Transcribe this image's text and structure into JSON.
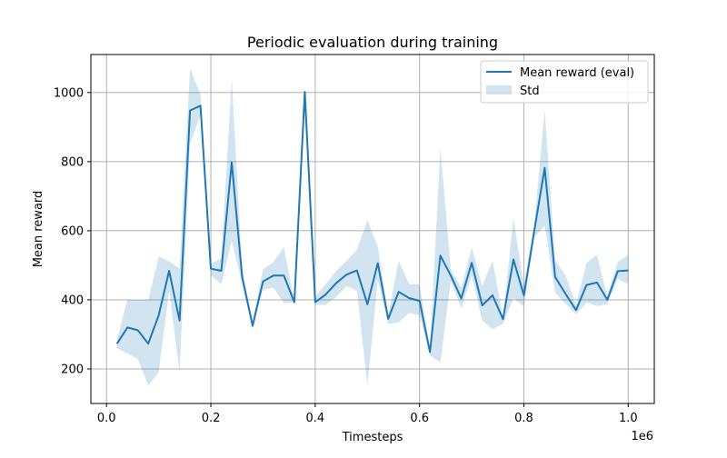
{
  "chart_data": {
    "type": "line",
    "title": "Periodic evaluation during training",
    "xlabel": "Timesteps",
    "ylabel": "Mean reward",
    "x_offset_label": "1e6",
    "xlim": [
      -0.03,
      1.05
    ],
    "ylim": [
      100,
      1110
    ],
    "xticks": [
      0.0,
      0.2,
      0.4,
      0.6,
      0.8,
      1.0
    ],
    "xtick_labels": [
      "0.0",
      "0.2",
      "0.4",
      "0.6",
      "0.8",
      "1.0"
    ],
    "yticks": [
      200,
      400,
      600,
      800,
      1000
    ],
    "ytick_labels": [
      "200",
      "400",
      "600",
      "800",
      "1000"
    ],
    "grid": true,
    "legend_position": "top-right",
    "colors": {
      "line": "#1f77b4",
      "band": "#1f77b4",
      "grid": "#b0b0b0",
      "frame": "#000000"
    },
    "x": [
      0.02,
      0.04,
      0.06,
      0.08,
      0.1,
      0.12,
      0.14,
      0.16,
      0.18,
      0.2,
      0.22,
      0.24,
      0.26,
      0.28,
      0.3,
      0.32,
      0.34,
      0.36,
      0.38,
      0.4,
      0.42,
      0.44,
      0.46,
      0.48,
      0.5,
      0.52,
      0.54,
      0.56,
      0.58,
      0.6,
      0.62,
      0.64,
      0.66,
      0.68,
      0.7,
      0.72,
      0.74,
      0.76,
      0.78,
      0.8,
      0.82,
      0.84,
      0.86,
      0.88,
      0.9,
      0.92,
      0.94,
      0.96,
      0.98,
      1.0
    ],
    "series": [
      {
        "name": "Mean reward (eval)",
        "values": [
          273,
          320,
          312,
          273,
          355,
          484,
          340,
          948,
          962,
          490,
          484,
          798,
          465,
          325,
          453,
          470,
          470,
          393,
          1002,
          393,
          415,
          448,
          473,
          485,
          387,
          506,
          345,
          423,
          405,
          397,
          249,
          528,
          470,
          404,
          507,
          384,
          413,
          344,
          517,
          413,
          601,
          782,
          466,
          417,
          370,
          443,
          450,
          400,
          483,
          485
        ]
      }
    ],
    "band": {
      "name": "Std",
      "lower": [
        260,
        245,
        228,
        152,
        190,
        425,
        190,
        850,
        935,
        470,
        445,
        570,
        445,
        318,
        430,
        435,
        390,
        393,
        1002,
        385,
        385,
        408,
        440,
        426,
        152,
        457,
        330,
        335,
        362,
        355,
        240,
        218,
        455,
        375,
        470,
        340,
        315,
        330,
        405,
        380,
        580,
        615,
        420,
        388,
        358,
        392,
        382,
        388,
        460,
        445
      ],
      "upper": [
        285,
        400,
        400,
        400,
        525,
        512,
        490,
        1070,
        995,
        505,
        520,
        1040,
        490,
        338,
        488,
        510,
        553,
        395,
        1002,
        410,
        445,
        483,
        513,
        545,
        630,
        555,
        355,
        513,
        445,
        445,
        258,
        838,
        488,
        435,
        552,
        440,
        513,
        352,
        637,
        440,
        620,
        948,
        515,
        470,
        385,
        507,
        530,
        410,
        510,
        530
      ]
    }
  }
}
